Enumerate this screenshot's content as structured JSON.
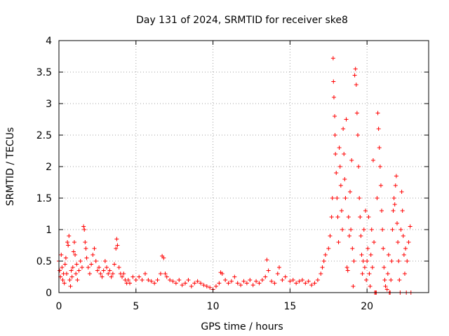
{
  "chart_data": {
    "type": "scatter",
    "title": "Day 131 of 2024, SRMTID for receiver ske8",
    "xlabel": "GPS time / hours",
    "ylabel": "SRMTID / TECUs",
    "xlim": [
      0,
      24
    ],
    "ylim": [
      0,
      4
    ],
    "xticks": [
      0,
      5,
      10,
      15,
      20
    ],
    "xtick_labels": [
      "0",
      "5",
      "10",
      "15",
      "20"
    ],
    "yticks": [
      0,
      0.5,
      1,
      1.5,
      2,
      2.5,
      3,
      3.5,
      4
    ],
    "ytick_labels": [
      "0",
      "0.5",
      "1",
      "1.5",
      "2",
      "2.5",
      "3",
      "3.5",
      "4"
    ],
    "grid": true,
    "marker": "+",
    "color": "#ff0000",
    "series": [
      {
        "name": "ske8",
        "points": [
          [
            0.0,
            0.5
          ],
          [
            0.05,
            0.35
          ],
          [
            0.1,
            0.25
          ],
          [
            0.15,
            0.6
          ],
          [
            0.2,
            0.4
          ],
          [
            0.25,
            0.2
          ],
          [
            0.3,
            0.3
          ],
          [
            0.35,
            0.15
          ],
          [
            0.4,
            0.45
          ],
          [
            0.45,
            0.55
          ],
          [
            0.5,
            0.3
          ],
          [
            0.55,
            0.8
          ],
          [
            0.6,
            0.75
          ],
          [
            0.65,
            0.9
          ],
          [
            0.7,
            0.2
          ],
          [
            0.75,
            0.1
          ],
          [
            0.8,
            0.35
          ],
          [
            0.85,
            0.25
          ],
          [
            0.9,
            0.4
          ],
          [
            0.95,
            0.65
          ],
          [
            1.0,
            0.8
          ],
          [
            1.05,
            0.6
          ],
          [
            1.1,
            0.3
          ],
          [
            1.15,
            0.45
          ],
          [
            1.2,
            0.2
          ],
          [
            1.3,
            0.35
          ],
          [
            1.4,
            0.5
          ],
          [
            1.5,
            0.4
          ],
          [
            1.6,
            1.05
          ],
          [
            1.65,
            1.0
          ],
          [
            1.7,
            0.8
          ],
          [
            1.75,
            0.7
          ],
          [
            1.8,
            0.55
          ],
          [
            1.9,
            0.4
          ],
          [
            2.0,
            0.3
          ],
          [
            2.1,
            0.45
          ],
          [
            2.2,
            0.6
          ],
          [
            2.3,
            0.7
          ],
          [
            2.4,
            0.5
          ],
          [
            2.5,
            0.35
          ],
          [
            2.6,
            0.4
          ],
          [
            2.7,
            0.3
          ],
          [
            2.8,
            0.25
          ],
          [
            2.9,
            0.35
          ],
          [
            3.0,
            0.5
          ],
          [
            3.1,
            0.4
          ],
          [
            3.2,
            0.3
          ],
          [
            3.3,
            0.35
          ],
          [
            3.4,
            0.25
          ],
          [
            3.5,
            0.3
          ],
          [
            3.6,
            0.45
          ],
          [
            3.7,
            0.7
          ],
          [
            3.75,
            0.85
          ],
          [
            3.8,
            0.75
          ],
          [
            3.9,
            0.4
          ],
          [
            4.0,
            0.3
          ],
          [
            4.1,
            0.25
          ],
          [
            4.2,
            0.3
          ],
          [
            4.3,
            0.2
          ],
          [
            4.4,
            0.15
          ],
          [
            4.5,
            0.2
          ],
          [
            4.6,
            0.15
          ],
          [
            4.8,
            0.25
          ],
          [
            5.0,
            0.2
          ],
          [
            5.2,
            0.25
          ],
          [
            5.4,
            0.2
          ],
          [
            5.6,
            0.3
          ],
          [
            5.8,
            0.2
          ],
          [
            6.0,
            0.18
          ],
          [
            6.2,
            0.15
          ],
          [
            6.4,
            0.2
          ],
          [
            6.6,
            0.3
          ],
          [
            6.7,
            0.58
          ],
          [
            6.8,
            0.55
          ],
          [
            6.9,
            0.3
          ],
          [
            7.0,
            0.25
          ],
          [
            7.2,
            0.2
          ],
          [
            7.4,
            0.18
          ],
          [
            7.6,
            0.15
          ],
          [
            7.8,
            0.2
          ],
          [
            8.0,
            0.12
          ],
          [
            8.2,
            0.15
          ],
          [
            8.4,
            0.2
          ],
          [
            8.6,
            0.1
          ],
          [
            8.8,
            0.15
          ],
          [
            9.0,
            0.18
          ],
          [
            9.2,
            0.15
          ],
          [
            9.4,
            0.12
          ],
          [
            9.6,
            0.1
          ],
          [
            9.8,
            0.08
          ],
          [
            10.0,
            0.05
          ],
          [
            10.2,
            0.1
          ],
          [
            10.4,
            0.15
          ],
          [
            10.5,
            0.32
          ],
          [
            10.6,
            0.3
          ],
          [
            10.8,
            0.2
          ],
          [
            11.0,
            0.15
          ],
          [
            11.2,
            0.18
          ],
          [
            11.4,
            0.25
          ],
          [
            11.6,
            0.15
          ],
          [
            11.8,
            0.12
          ],
          [
            12.0,
            0.18
          ],
          [
            12.2,
            0.15
          ],
          [
            12.4,
            0.2
          ],
          [
            12.6,
            0.12
          ],
          [
            12.8,
            0.18
          ],
          [
            13.0,
            0.15
          ],
          [
            13.2,
            0.2
          ],
          [
            13.4,
            0.25
          ],
          [
            13.5,
            0.52
          ],
          [
            13.6,
            0.35
          ],
          [
            13.8,
            0.18
          ],
          [
            14.0,
            0.15
          ],
          [
            14.2,
            0.3
          ],
          [
            14.3,
            0.4
          ],
          [
            14.5,
            0.2
          ],
          [
            14.7,
            0.25
          ],
          [
            15.0,
            0.18
          ],
          [
            15.2,
            0.2
          ],
          [
            15.4,
            0.15
          ],
          [
            15.6,
            0.18
          ],
          [
            15.8,
            0.2
          ],
          [
            16.0,
            0.15
          ],
          [
            16.2,
            0.18
          ],
          [
            16.4,
            0.12
          ],
          [
            16.6,
            0.15
          ],
          [
            16.8,
            0.2
          ],
          [
            17.0,
            0.3
          ],
          [
            17.1,
            0.4
          ],
          [
            17.2,
            0.5
          ],
          [
            17.3,
            0.6
          ],
          [
            17.5,
            0.7
          ],
          [
            17.6,
            0.9
          ],
          [
            17.7,
            1.2
          ],
          [
            17.75,
            1.5
          ],
          [
            17.8,
            3.72
          ],
          [
            17.82,
            3.35
          ],
          [
            17.85,
            3.1
          ],
          [
            17.9,
            2.8
          ],
          [
            17.92,
            2.5
          ],
          [
            17.95,
            2.2
          ],
          [
            18.0,
            1.9
          ],
          [
            18.05,
            1.5
          ],
          [
            18.1,
            1.2
          ],
          [
            18.15,
            0.8
          ],
          [
            18.2,
            2.3
          ],
          [
            18.25,
            2.0
          ],
          [
            18.3,
            1.7
          ],
          [
            18.35,
            1.3
          ],
          [
            18.4,
            1.0
          ],
          [
            18.45,
            2.6
          ],
          [
            18.5,
            2.2
          ],
          [
            18.55,
            1.8
          ],
          [
            18.6,
            1.5
          ],
          [
            18.65,
            2.75
          ],
          [
            18.7,
            0.4
          ],
          [
            18.75,
            0.35
          ],
          [
            18.8,
            1.2
          ],
          [
            18.85,
            0.9
          ],
          [
            18.9,
            1.6
          ],
          [
            18.95,
            1.0
          ],
          [
            19.0,
            2.1
          ],
          [
            19.05,
            0.7
          ],
          [
            19.1,
            0.1
          ],
          [
            19.15,
            0.5
          ],
          [
            19.2,
            3.45
          ],
          [
            19.25,
            3.55
          ],
          [
            19.3,
            3.3
          ],
          [
            19.35,
            2.85
          ],
          [
            19.4,
            2.5
          ],
          [
            19.45,
            2.0
          ],
          [
            19.5,
            1.5
          ],
          [
            19.55,
            1.2
          ],
          [
            19.6,
            0.9
          ],
          [
            19.65,
            0.6
          ],
          [
            19.7,
            0.3
          ],
          [
            19.75,
            0.5
          ],
          [
            19.8,
            1.0
          ],
          [
            19.85,
            0.4
          ],
          [
            19.9,
            1.3
          ],
          [
            19.95,
            0.2
          ],
          [
            20.0,
            0.5
          ],
          [
            20.05,
            0.7
          ],
          [
            20.1,
            1.2
          ],
          [
            20.15,
            0.3
          ],
          [
            20.2,
            0.1
          ],
          [
            20.25,
            0.6
          ],
          [
            20.3,
            1.0
          ],
          [
            20.35,
            0.4
          ],
          [
            20.4,
            2.1
          ],
          [
            20.45,
            0.8
          ],
          [
            20.5,
            0.0
          ],
          [
            20.55,
            0.0
          ],
          [
            20.6,
            0.0
          ],
          [
            20.65,
            1.5
          ],
          [
            20.7,
            2.85
          ],
          [
            20.75,
            2.6
          ],
          [
            20.8,
            2.3
          ],
          [
            20.85,
            2.0
          ],
          [
            20.9,
            1.7
          ],
          [
            20.95,
            1.3
          ],
          [
            21.0,
            1.0
          ],
          [
            21.05,
            0.7
          ],
          [
            21.1,
            0.4
          ],
          [
            21.15,
            0.2
          ],
          [
            21.2,
            0.1
          ],
          [
            21.3,
            0.05
          ],
          [
            21.35,
            0.3
          ],
          [
            21.4,
            0.6
          ],
          [
            21.45,
            0.0
          ],
          [
            21.5,
            0.0
          ],
          [
            21.55,
            0.2
          ],
          [
            21.6,
            0.5
          ],
          [
            21.65,
            1.0
          ],
          [
            21.7,
            1.3
          ],
          [
            21.75,
            1.5
          ],
          [
            21.8,
            1.4
          ],
          [
            21.85,
            1.7
          ],
          [
            21.9,
            1.85
          ],
          [
            21.95,
            1.1
          ],
          [
            22.0,
            0.8
          ],
          [
            22.05,
            0.5
          ],
          [
            22.1,
            0.2
          ],
          [
            22.15,
            0.0
          ],
          [
            22.2,
            1.0
          ],
          [
            22.25,
            1.6
          ],
          [
            22.3,
            1.3
          ],
          [
            22.35,
            0.9
          ],
          [
            22.4,
            0.6
          ],
          [
            22.45,
            0.3
          ],
          [
            22.5,
            0.7
          ],
          [
            22.55,
            0.0
          ],
          [
            22.6,
            0.5
          ],
          [
            22.7,
            0.8
          ],
          [
            22.8,
            1.05
          ],
          [
            22.85,
            0.0
          ]
        ]
      }
    ]
  }
}
